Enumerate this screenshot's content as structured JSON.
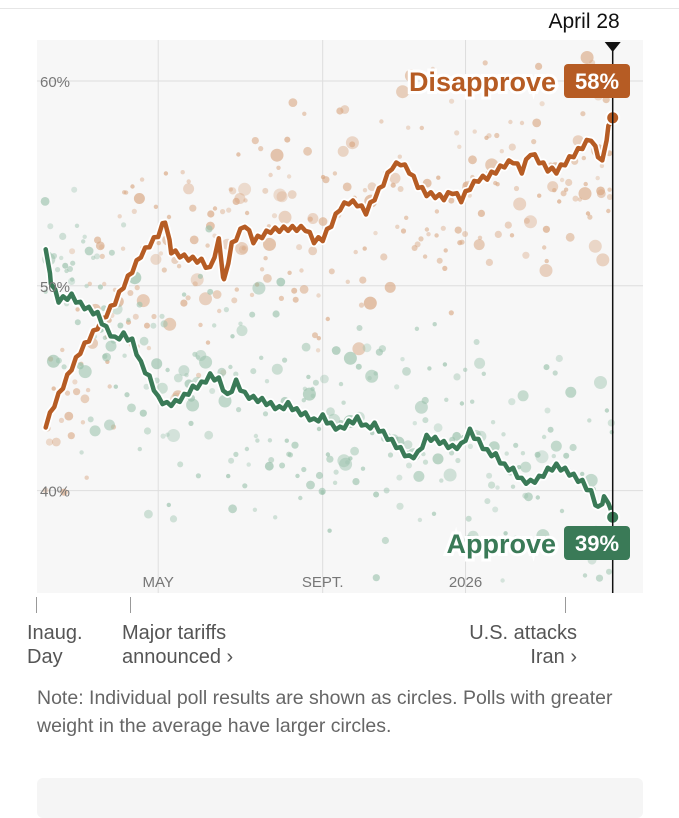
{
  "chart_data": {
    "type": "line",
    "subtype": "poll-average-with-scatter",
    "date_label": "April 28",
    "y_ticks": [
      40,
      50,
      60
    ],
    "y_tick_labels": [
      "40%",
      "50%",
      "60%"
    ],
    "ylim": [
      35,
      62
    ],
    "x_tick_labels": [
      "MAY",
      "SEPT.",
      "2026"
    ],
    "x_ticks_weeks": [
      14,
      33,
      49.5
    ],
    "x_range_weeks": [
      0,
      70
    ],
    "series": [
      {
        "name": "Disapprove",
        "label": "Disapprove",
        "value_label": "58%",
        "end_value": 58.2,
        "color": "#b65c24",
        "poll_color": "#d9a884",
        "keyframes": [
          [
            1,
            43.2
          ],
          [
            2,
            44.2
          ],
          [
            4,
            46.0
          ],
          [
            5,
            46.8
          ],
          [
            7,
            48.0
          ],
          [
            9,
            49.2
          ],
          [
            10,
            50.0
          ],
          [
            12,
            51.5
          ],
          [
            14,
            52.5
          ],
          [
            14.8,
            53.2
          ],
          [
            15.5,
            51.7
          ],
          [
            17,
            51.4
          ],
          [
            19,
            51.2
          ],
          [
            20,
            50.8
          ],
          [
            21,
            52.2
          ],
          [
            21.6,
            50.2
          ],
          [
            22.5,
            52.0
          ],
          [
            24,
            53.0
          ],
          [
            25,
            52.2
          ],
          [
            27,
            52.7
          ],
          [
            29,
            52.8
          ],
          [
            31,
            52.8
          ],
          [
            32,
            52.2
          ],
          [
            33,
            52.3
          ],
          [
            34,
            53.0
          ],
          [
            35,
            53.8
          ],
          [
            36,
            54.1
          ],
          [
            37,
            54.0
          ],
          [
            38,
            53.6
          ],
          [
            39,
            54.3
          ],
          [
            40,
            55.0
          ],
          [
            41,
            55.8
          ],
          [
            42,
            56.0
          ],
          [
            43,
            55.6
          ],
          [
            44,
            54.9
          ],
          [
            45,
            54.5
          ],
          [
            47,
            54.3
          ],
          [
            48,
            54.6
          ],
          [
            49,
            54.2
          ],
          [
            50,
            54.8
          ],
          [
            51,
            55.2
          ],
          [
            52,
            55.3
          ],
          [
            53,
            55.6
          ],
          [
            54,
            55.9
          ],
          [
            55,
            56.1
          ],
          [
            56,
            55.6
          ],
          [
            57,
            56.5
          ],
          [
            58,
            56.1
          ],
          [
            59,
            55.7
          ],
          [
            60,
            55.6
          ],
          [
            61,
            56.0
          ],
          [
            62,
            56.4
          ],
          [
            63,
            56.8
          ],
          [
            64,
            57.2
          ],
          [
            64.8,
            56.4
          ],
          [
            65.3,
            56.0
          ],
          [
            66,
            57.7
          ],
          [
            66.5,
            58.2
          ]
        ]
      },
      {
        "name": "Approve",
        "label": "Approve",
        "value_label": "39%",
        "end_value": 38.7,
        "color": "#3a7a57",
        "poll_color": "#99c1ab",
        "keyframes": [
          [
            1,
            51.9
          ],
          [
            1.6,
            50.2
          ],
          [
            2.5,
            49.3
          ],
          [
            4,
            49.5
          ],
          [
            5,
            49.1
          ],
          [
            7,
            48.6
          ],
          [
            8,
            47.9
          ],
          [
            9,
            47.4
          ],
          [
            10,
            47.6
          ],
          [
            11,
            47.3
          ],
          [
            12,
            46.2
          ],
          [
            13,
            45.5
          ],
          [
            14,
            44.5
          ],
          [
            15,
            44.2
          ],
          [
            16,
            44.3
          ],
          [
            17,
            44.6
          ],
          [
            18,
            45.0
          ],
          [
            19,
            45.2
          ],
          [
            20,
            45.6
          ],
          [
            21,
            45.4
          ],
          [
            22,
            44.6
          ],
          [
            23,
            45.3
          ],
          [
            24,
            44.7
          ],
          [
            25,
            44.5
          ],
          [
            26,
            44.4
          ],
          [
            27,
            44.2
          ],
          [
            28,
            44.0
          ],
          [
            29,
            44.2
          ],
          [
            30,
            43.9
          ],
          [
            31,
            43.7
          ],
          [
            32,
            43.4
          ],
          [
            33,
            43.6
          ],
          [
            34,
            43.2
          ],
          [
            35,
            43.0
          ],
          [
            36,
            43.3
          ],
          [
            37,
            43.5
          ],
          [
            38,
            43.1
          ],
          [
            39,
            43.2
          ],
          [
            40,
            42.8
          ],
          [
            41,
            42.4
          ],
          [
            42,
            42.0
          ],
          [
            43,
            41.6
          ],
          [
            44,
            41.8
          ],
          [
            45,
            42.6
          ],
          [
            46,
            42.5
          ],
          [
            47,
            42.3
          ],
          [
            48,
            42.1
          ],
          [
            49,
            42.2
          ],
          [
            50,
            42.9
          ],
          [
            51,
            42.4
          ],
          [
            52,
            41.9
          ],
          [
            53,
            41.7
          ],
          [
            54,
            41.2
          ],
          [
            55,
            41.0
          ],
          [
            56,
            40.5
          ],
          [
            57,
            40.4
          ],
          [
            58,
            40.6
          ],
          [
            59,
            41.0
          ],
          [
            60,
            41.2
          ],
          [
            61,
            41.0
          ],
          [
            62,
            40.7
          ],
          [
            63,
            40.4
          ],
          [
            64,
            39.9
          ],
          [
            64.8,
            39.1
          ],
          [
            65.5,
            39.6
          ],
          [
            66,
            39.5
          ],
          [
            66.5,
            38.7
          ]
        ]
      }
    ]
  },
  "annotations": [
    {
      "line1": "Inaug.",
      "line2": "Day",
      "linked": false
    },
    {
      "line1": "Major tariffs",
      "line2": "announced ›",
      "linked": true
    },
    {
      "line1": "U.S. attacks",
      "line2": "Iran ›",
      "linked": true
    }
  ],
  "note": "Note: Individual poll results are shown as circles. Polls with greater weight in the average have larger circles."
}
